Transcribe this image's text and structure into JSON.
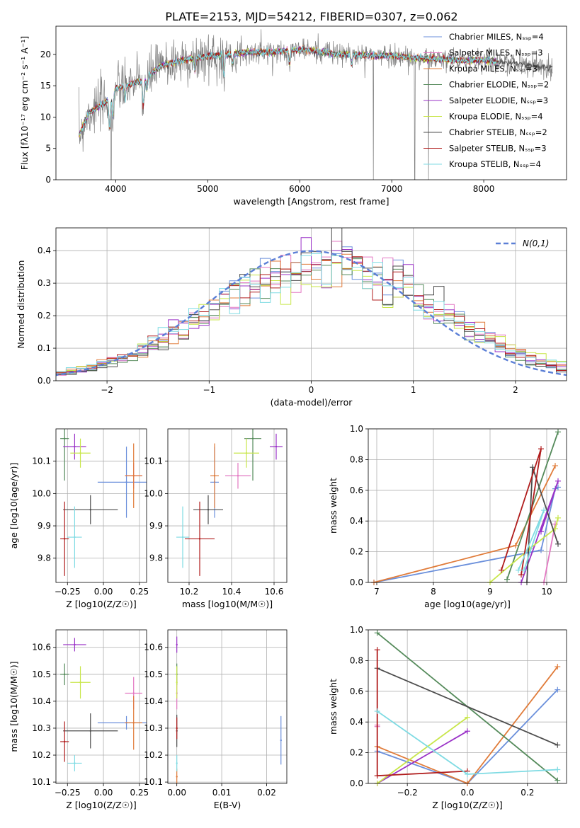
{
  "figure_title": "PLATE=2153, MJD=54212, FIBERID=0307, z=0.062",
  "chart_data": [
    {
      "id": "spectrum",
      "type": "line",
      "title": "PLATE=2153, MJD=54212, FIBERID=0307, z=0.062",
      "xlabel": "wavelength [Angstrom, rest frame]",
      "ylabel": "Flux [fλ10⁻¹⁷ erg cm⁻² s⁻¹ A⁻¹]",
      "xlim": [
        3350,
        8900
      ],
      "ylim": [
        0,
        24.5
      ],
      "xticks": [
        4000,
        5000,
        6000,
        7000,
        8000
      ],
      "yticks": [
        0,
        5,
        10,
        15,
        20
      ],
      "grid": false,
      "legend_position": "upper-right",
      "continuum": [
        [
          3600,
          7.0
        ],
        [
          3700,
          10.5
        ],
        [
          3800,
          11.5
        ],
        [
          3900,
          12.5
        ],
        [
          4000,
          14.5
        ],
        [
          4100,
          15.0
        ],
        [
          4200,
          15.5
        ],
        [
          4300,
          15.8
        ],
        [
          4400,
          17.2
        ],
        [
          4500,
          18.2
        ],
        [
          4700,
          19.0
        ],
        [
          4900,
          19.5
        ],
        [
          5000,
          19.7
        ],
        [
          5200,
          20.0
        ],
        [
          5400,
          20.3
        ],
        [
          5600,
          20.3
        ],
        [
          5800,
          20.5
        ],
        [
          6000,
          20.8
        ],
        [
          6200,
          20.5
        ],
        [
          6400,
          20.0
        ],
        [
          6600,
          20.0
        ],
        [
          6800,
          19.8
        ],
        [
          7000,
          19.8
        ],
        [
          7200,
          19.5
        ],
        [
          7400,
          19.3
        ],
        [
          7600,
          19.2
        ],
        [
          7800,
          19.0
        ],
        [
          8000,
          19.1
        ],
        [
          8200,
          18.8
        ],
        [
          8400,
          18.5
        ],
        [
          8600,
          18.0
        ],
        [
          8750,
          17.8
        ]
      ],
      "sky_spikes": [
        [
          3950,
          0
        ],
        [
          5580,
          24
        ],
        [
          6300,
          22
        ],
        [
          6800,
          0
        ],
        [
          7250,
          0
        ],
        [
          7400,
          0
        ]
      ],
      "series": [
        {
          "name": "Chabrier MILES, N_SSP=4",
          "color": "#6a8fdb"
        },
        {
          "name": "Salpeter MILES, N_SSP=3",
          "color": "#e377c2"
        },
        {
          "name": "Kroupa MILES, N_SSP=3",
          "color": "#e07b39"
        },
        {
          "name": "Chabrier ELODIE, N_SSP=2",
          "color": "#548a5a"
        },
        {
          "name": "Salpeter ELODIE, N_SSP=3",
          "color": "#9a32c7"
        },
        {
          "name": "Kroupa ELODIE, N_SSP=4",
          "color": "#c8e64a"
        },
        {
          "name": "Chabrier STELIB, N_SSP=2",
          "color": "#4d4d4d"
        },
        {
          "name": "Salpeter STELIB, N_SSP=3",
          "color": "#b01c1c"
        },
        {
          "name": "Kroupa STELIB, N_SSP=4",
          "color": "#7fdbe3"
        }
      ]
    },
    {
      "id": "residuals",
      "type": "line",
      "xlabel": "(data-model)/error",
      "ylabel": "Normed distribution",
      "xlim": [
        -2.5,
        2.5
      ],
      "ylim": [
        0,
        0.47
      ],
      "xticks": [
        -2,
        -1,
        0,
        1,
        2
      ],
      "yticks": [
        0.0,
        0.1,
        0.2,
        0.3,
        0.4
      ],
      "grid": true,
      "legend_position": "upper-right",
      "reference": {
        "name": "N(0,1)",
        "mu": 0,
        "sigma": 1,
        "color": "#5b7fd6"
      },
      "histogram_note": "step histograms, bin width 0.1, one per model, colors as spectrum series"
    },
    {
      "id": "age-vs-Z",
      "type": "scatter",
      "xlabel": "Z [log10(Z/Z☉)]",
      "ylabel": "age [log10(age/yr)]",
      "xlim": [
        -0.33,
        0.3
      ],
      "ylim": [
        9.725,
        10.2
      ],
      "xticks": [
        -0.25,
        0.0,
        0.25
      ],
      "yticks": [
        9.8,
        9.9,
        10.0,
        10.1
      ],
      "grid": true,
      "points": [
        {
          "model": "Chabrier MILES",
          "x": 0.16,
          "xerr": 0.2,
          "y": 10.035,
          "yerr": 0.11
        },
        {
          "model": "Salpeter MILES",
          "x": 0.21,
          "xerr": 0.06,
          "y": 10.055,
          "yerr": 0.04
        },
        {
          "model": "Kroupa MILES",
          "x": 0.21,
          "xerr": 0.06,
          "y": 10.055,
          "yerr": 0.1
        },
        {
          "model": "Chabrier ELODIE",
          "x": -0.27,
          "xerr": 0.03,
          "y": 10.17,
          "yerr": 0.13
        },
        {
          "model": "Salpeter ELODIE",
          "x": -0.2,
          "xerr": 0.08,
          "y": 10.145,
          "yerr": 0.04
        },
        {
          "model": "Kroupa ELODIE",
          "x": -0.16,
          "xerr": 0.07,
          "y": 10.125,
          "yerr": 0.045
        },
        {
          "model": "Chabrier STELIB",
          "x": -0.09,
          "xerr": 0.19,
          "y": 9.95,
          "yerr": 0.045
        },
        {
          "model": "Salpeter STELIB",
          "x": -0.27,
          "xerr": 0.03,
          "y": 9.86,
          "yerr": 0.115
        },
        {
          "model": "Kroupa STELIB",
          "x": -0.2,
          "xerr": 0.05,
          "y": 9.865,
          "yerr": 0.095
        }
      ]
    },
    {
      "id": "age-vs-mass",
      "type": "scatter",
      "xlabel": "mass [log10(M/M☉)]",
      "xlim": [
        10.1,
        10.66
      ],
      "ylim": [
        9.725,
        10.2
      ],
      "xticks": [
        10.2,
        10.4,
        10.6
      ],
      "yticks": [
        9.8,
        9.9,
        10.0,
        10.1
      ],
      "grid": true,
      "points": [
        {
          "model": "Chabrier MILES",
          "x": 10.32,
          "xerr": 0.02,
          "y": 10.035,
          "yerr": 0.11
        },
        {
          "model": "Salpeter MILES",
          "x": 10.43,
          "xerr": 0.06,
          "y": 10.055,
          "yerr": 0.04
        },
        {
          "model": "Kroupa MILES",
          "x": 10.32,
          "xerr": 0.02,
          "y": 10.055,
          "yerr": 0.1
        },
        {
          "model": "Chabrier ELODIE",
          "x": 10.5,
          "xerr": 0.04,
          "y": 10.17,
          "yerr": 0.13
        },
        {
          "model": "Salpeter ELODIE",
          "x": 10.61,
          "xerr": 0.03,
          "y": 10.145,
          "yerr": 0.04
        },
        {
          "model": "Kroupa ELODIE",
          "x": 10.47,
          "xerr": 0.06,
          "y": 10.125,
          "yerr": 0.045
        },
        {
          "model": "Chabrier STELIB",
          "x": 10.29,
          "xerr": 0.07,
          "y": 9.95,
          "yerr": 0.045
        },
        {
          "model": "Salpeter STELIB",
          "x": 10.25,
          "xerr": 0.07,
          "y": 9.86,
          "yerr": 0.115
        },
        {
          "model": "Kroupa STELIB",
          "x": 10.17,
          "xerr": 0.03,
          "y": 9.865,
          "yerr": 0.095
        }
      ]
    },
    {
      "id": "weight-vs-age",
      "type": "line",
      "xlabel": "age [log10(age/yr)]",
      "ylabel": "mass weight",
      "xlim": [
        6.85,
        10.35
      ],
      "ylim": [
        0,
        1.0
      ],
      "xticks": [
        7,
        8,
        9,
        10
      ],
      "yticks": [
        0.0,
        0.2,
        0.4,
        0.6,
        0.8,
        1.0
      ],
      "grid": true,
      "series": [
        {
          "model": "Chabrier MILES",
          "points": [
            [
              6.95,
              0.0
            ],
            [
              9.9,
              0.21
            ],
            [
              10.15,
              0.61
            ],
            [
              10.2,
              0.62
            ]
          ]
        },
        {
          "model": "Kroupa MILES",
          "points": [
            [
              6.95,
              0.0
            ],
            [
              9.45,
              0.24
            ],
            [
              10.15,
              0.76
            ]
          ]
        },
        {
          "model": "Salpeter MILES",
          "points": [
            [
              9.95,
              0.0
            ],
            [
              10.15,
              0.38
            ]
          ]
        },
        {
          "model": "Chabrier ELODIE",
          "points": [
            [
              9.3,
              0.02
            ],
            [
              10.2,
              0.98
            ]
          ]
        },
        {
          "model": "Salpeter ELODIE",
          "points": [
            [
              9.55,
              0.0
            ],
            [
              10.2,
              0.66
            ],
            [
              9.9,
              0.33
            ]
          ]
        },
        {
          "model": "Kroupa ELODIE",
          "points": [
            [
              9.0,
              0.0
            ],
            [
              9.7,
              0.22
            ],
            [
              10.15,
              0.35
            ],
            [
              10.2,
              0.42
            ]
          ]
        },
        {
          "model": "Chabrier STELIB",
          "points": [
            [
              9.65,
              0.0
            ],
            [
              9.75,
              0.75
            ],
            [
              10.2,
              0.25
            ]
          ]
        },
        {
          "model": "Salpeter STELIB",
          "points": [
            [
              9.2,
              0.08
            ],
            [
              9.9,
              0.87
            ],
            [
              9.55,
              0.05
            ]
          ]
        },
        {
          "model": "Kroupa STELIB",
          "points": [
            [
              9.5,
              0.08
            ],
            [
              9.95,
              0.47
            ],
            [
              9.6,
              0.08
            ]
          ]
        }
      ]
    },
    {
      "id": "mass-vs-Z",
      "type": "scatter",
      "xlabel": "Z [log10(Z/Z☉)]",
      "ylabel": "mass [log10(M/M☉)]",
      "xlim": [
        -0.33,
        0.3
      ],
      "ylim": [
        10.095,
        10.665
      ],
      "xticks": [
        -0.25,
        0.0,
        0.25
      ],
      "yticks": [
        10.1,
        10.2,
        10.3,
        10.4,
        10.5,
        10.6
      ],
      "grid": true,
      "points": [
        {
          "model": "Chabrier MILES",
          "x": 0.16,
          "xerr": 0.2,
          "y": 10.32,
          "yerr": 0.025
        },
        {
          "model": "Salpeter MILES",
          "x": 0.21,
          "xerr": 0.06,
          "y": 10.43,
          "yerr": 0.06
        },
        {
          "model": "Kroupa MILES",
          "x": 0.21,
          "xerr": 0.06,
          "y": 10.32,
          "yerr": 0.1
        },
        {
          "model": "Chabrier ELODIE",
          "x": -0.27,
          "xerr": 0.03,
          "y": 10.5,
          "yerr": 0.04
        },
        {
          "model": "Salpeter ELODIE",
          "x": -0.2,
          "xerr": 0.08,
          "y": 10.61,
          "yerr": 0.025
        },
        {
          "model": "Kroupa ELODIE",
          "x": -0.16,
          "xerr": 0.07,
          "y": 10.47,
          "yerr": 0.06
        },
        {
          "model": "Chabrier STELIB",
          "x": -0.09,
          "xerr": 0.19,
          "y": 10.29,
          "yerr": 0.065
        },
        {
          "model": "Salpeter STELIB",
          "x": -0.27,
          "xerr": 0.03,
          "y": 10.25,
          "yerr": 0.075
        },
        {
          "model": "Kroupa STELIB",
          "x": -0.2,
          "xerr": 0.05,
          "y": 10.17,
          "yerr": 0.03
        }
      ]
    },
    {
      "id": "mass-vs-ebv",
      "type": "scatter",
      "xlabel": "E(B-V)",
      "xlim": [
        -0.002,
        0.0245
      ],
      "ylim": [
        10.095,
        10.665
      ],
      "xticks": [
        0.0,
        0.01,
        0.02
      ],
      "yticks": [
        10.1,
        10.2,
        10.3,
        10.4,
        10.5,
        10.6
      ],
      "grid": true,
      "points": [
        {
          "model": "Chabrier MILES",
          "x": 0.0232,
          "y": 10.255,
          "yerr": 0.09
        },
        {
          "model": "Salpeter MILES",
          "x": 0.0,
          "y": 10.43,
          "yerr": 0.06
        },
        {
          "model": "Kroupa MILES",
          "x": 0.0,
          "y": 10.12,
          "yerr": 0.03
        },
        {
          "model": "Chabrier ELODIE",
          "x": 0.0,
          "y": 10.5,
          "yerr": 0.04
        },
        {
          "model": "Salpeter ELODIE",
          "x": 0.0,
          "y": 10.61,
          "yerr": 0.03
        },
        {
          "model": "Kroupa ELODIE",
          "x": 0.0,
          "y": 10.47,
          "yerr": 0.06
        },
        {
          "model": "Chabrier STELIB",
          "x": 0.0,
          "y": 10.29,
          "yerr": 0.06
        },
        {
          "model": "Salpeter STELIB",
          "x": 0.0,
          "y": 10.3,
          "yerr": 0.04
        },
        {
          "model": "Kroupa STELIB",
          "x": 0.0,
          "y": 10.17,
          "yerr": 0.03
        }
      ]
    },
    {
      "id": "weight-vs-Z",
      "type": "line",
      "xlabel": "Z [log10(Z/Z☉)]",
      "ylabel": "mass weight",
      "xlim": [
        -0.33,
        0.33
      ],
      "ylim": [
        0,
        1.0
      ],
      "xticks": [
        -0.2,
        0.0,
        0.2
      ],
      "yticks": [
        0.0,
        0.2,
        0.4,
        0.6,
        0.8,
        1.0
      ],
      "grid": true,
      "series": [
        {
          "model": "Chabrier MILES",
          "points": [
            [
              -0.3,
              0.21
            ],
            [
              0.0,
              0.0
            ],
            [
              0.3,
              0.61
            ]
          ]
        },
        {
          "model": "Kroupa MILES",
          "points": [
            [
              -0.3,
              0.24
            ],
            [
              0.0,
              0.0
            ],
            [
              0.3,
              0.76
            ]
          ]
        },
        {
          "model": "Salpeter MILES",
          "points": [
            [
              -0.3,
              0.38
            ],
            [
              -0.3,
              0.37
            ]
          ]
        },
        {
          "model": "Chabrier ELODIE",
          "points": [
            [
              -0.3,
              0.98
            ],
            [
              0.3,
              0.02
            ]
          ]
        },
        {
          "model": "Salpeter ELODIE",
          "points": [
            [
              -0.3,
              0.0
            ],
            [
              0.0,
              0.34
            ]
          ]
        },
        {
          "model": "Kroupa ELODIE",
          "points": [
            [
              -0.3,
              0.0
            ],
            [
              0.0,
              0.43
            ]
          ]
        },
        {
          "model": "Chabrier STELIB",
          "points": [
            [
              -0.3,
              0.75
            ],
            [
              0.3,
              0.25
            ]
          ]
        },
        {
          "model": "Salpeter STELIB",
          "points": [
            [
              -0.3,
              0.87
            ],
            [
              -0.3,
              0.05
            ],
            [
              0.0,
              0.08
            ]
          ]
        },
        {
          "model": "Kroupa STELIB",
          "points": [
            [
              -0.3,
              0.47
            ],
            [
              0.0,
              0.06
            ],
            [
              0.3,
              0.09
            ]
          ]
        }
      ]
    }
  ],
  "labels": {
    "spectrum_ylabel": "Flux [fλ10⁻¹⁷ erg cm⁻² s⁻¹ A⁻¹]",
    "residual_legend": "N(0,1)"
  }
}
